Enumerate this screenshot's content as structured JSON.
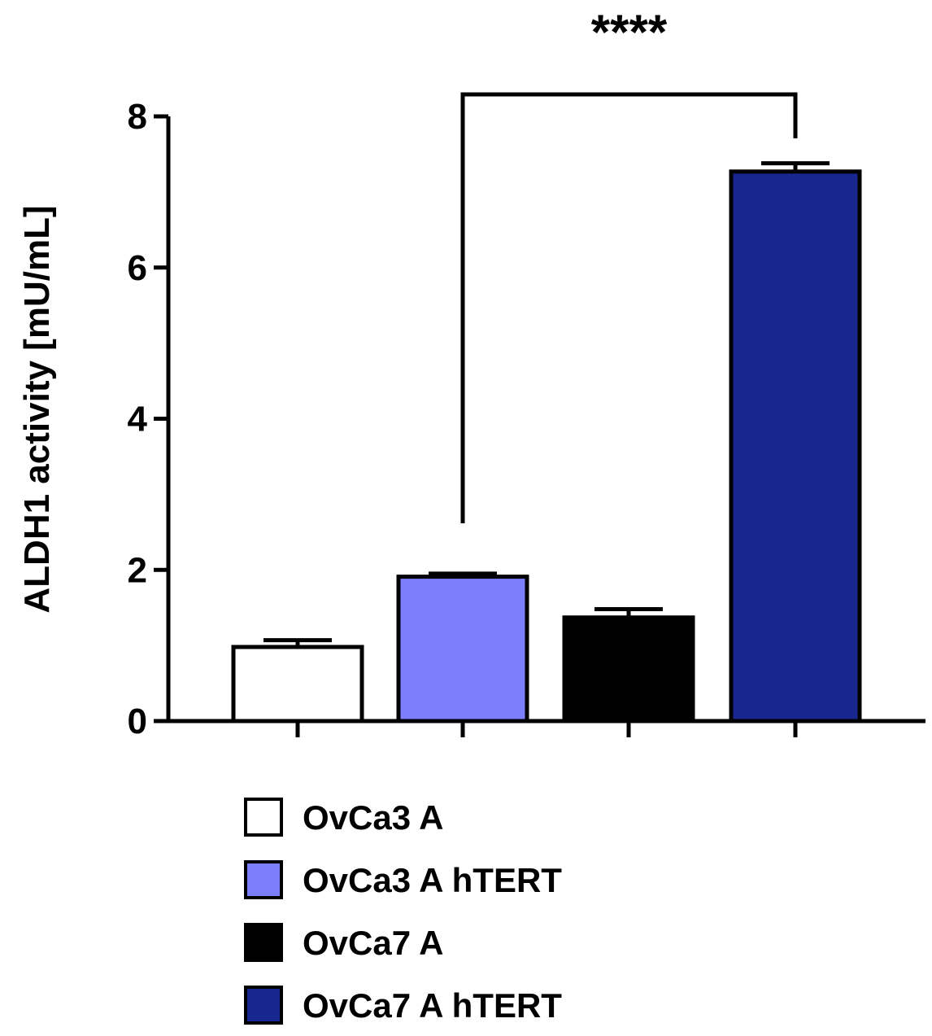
{
  "chart_data": {
    "type": "bar",
    "title": "",
    "xlabel": "",
    "ylabel": "ALDH1 activity [mU/mL]",
    "ylim": [
      0,
      8
    ],
    "yticks": [
      0,
      2,
      4,
      6,
      8
    ],
    "ytick_labels": [
      "0",
      "2",
      "4",
      "6",
      "8"
    ],
    "categories": [
      "OvCa3 A",
      "OvCa3 A hTERT",
      "OvCa7 A",
      "OvCa7 A hTERT"
    ],
    "values": [
      0.98,
      1.91,
      1.37,
      7.27
    ],
    "errors": [
      0.09,
      0.04,
      0.11,
      0.11
    ],
    "colors": [
      "#ffffff",
      "#7b7ffd",
      "#000000",
      "#17278f"
    ],
    "legend": {
      "position": "bottom",
      "entries": [
        "OvCa3 A",
        "OvCa3 A hTERT",
        "OvCa7 A",
        "OvCa7 A hTERT"
      ]
    },
    "annotations": [
      {
        "type": "significance",
        "from": 1,
        "to": 3,
        "label": "****"
      }
    ]
  }
}
